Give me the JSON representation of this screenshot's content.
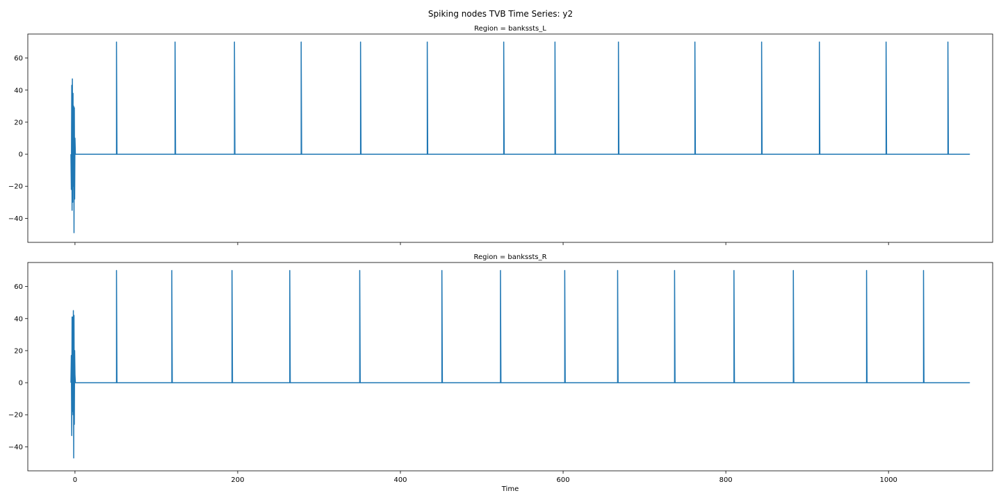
{
  "figure": {
    "title": "Spiking nodes TVB Time Series: y2",
    "xlabel": "Time"
  },
  "style": {
    "line_color": "#1f77b4",
    "axes_color": "#000000",
    "background": "#ffffff"
  },
  "chart_data": [
    {
      "type": "line",
      "title": "Region = bankssts_L",
      "xlim": [
        -58,
        1128
      ],
      "ylim": [
        -55,
        75
      ],
      "xticks": [
        0,
        200,
        400,
        600,
        800,
        1000
      ],
      "xtick_labels_visible": false,
      "yticks": [
        -40,
        -20,
        0,
        20,
        40,
        60
      ],
      "ytick_labels": [
        "−40",
        "−20",
        "0",
        "20",
        "40",
        "60"
      ],
      "baseline": 0,
      "spike_peak": 70,
      "x_end": 1100,
      "spike_times": [
        51,
        123,
        196,
        278,
        351,
        433,
        527,
        590,
        668,
        762,
        844,
        915,
        997,
        1073
      ],
      "initial_transient": {
        "x": [
          -5,
          -4.5,
          -4,
          -3.6,
          -3.2,
          -2.8,
          -2.4,
          -2,
          -1.6,
          -1.2,
          -0.8,
          -0.4,
          0,
          0.5,
          1
        ],
        "y": [
          0,
          -22,
          43,
          -35,
          47,
          -30,
          38,
          -20,
          30,
          -49,
          29,
          -28,
          10,
          0,
          0
        ]
      }
    },
    {
      "type": "line",
      "title": "Region = bankssts_R",
      "xlim": [
        -58,
        1128
      ],
      "ylim": [
        -55,
        75
      ],
      "xticks": [
        0,
        200,
        400,
        600,
        800,
        1000
      ],
      "xtick_labels": [
        "0",
        "200",
        "400",
        "600",
        "800",
        "1000"
      ],
      "xlabel": "Time",
      "yticks": [
        -40,
        -20,
        0,
        20,
        40,
        60
      ],
      "ytick_labels": [
        "−40",
        "−20",
        "0",
        "20",
        "40",
        "60"
      ],
      "baseline": 0,
      "spike_peak": 70,
      "x_end": 1100,
      "spike_times": [
        51,
        119,
        193,
        264,
        350,
        451,
        523,
        602,
        667,
        737,
        810,
        883,
        973,
        1043
      ],
      "initial_transient": {
        "x": [
          -5,
          -4.5,
          -4,
          -3.6,
          -3.2,
          -2.8,
          -2.4,
          -2,
          -1.6,
          -1.2,
          -0.8,
          -0.4,
          0,
          0.5,
          1
        ],
        "y": [
          0,
          17,
          -33,
          41,
          -18,
          41,
          -20,
          45,
          -47,
          42,
          -26,
          20,
          5,
          0,
          0
        ]
      }
    }
  ]
}
